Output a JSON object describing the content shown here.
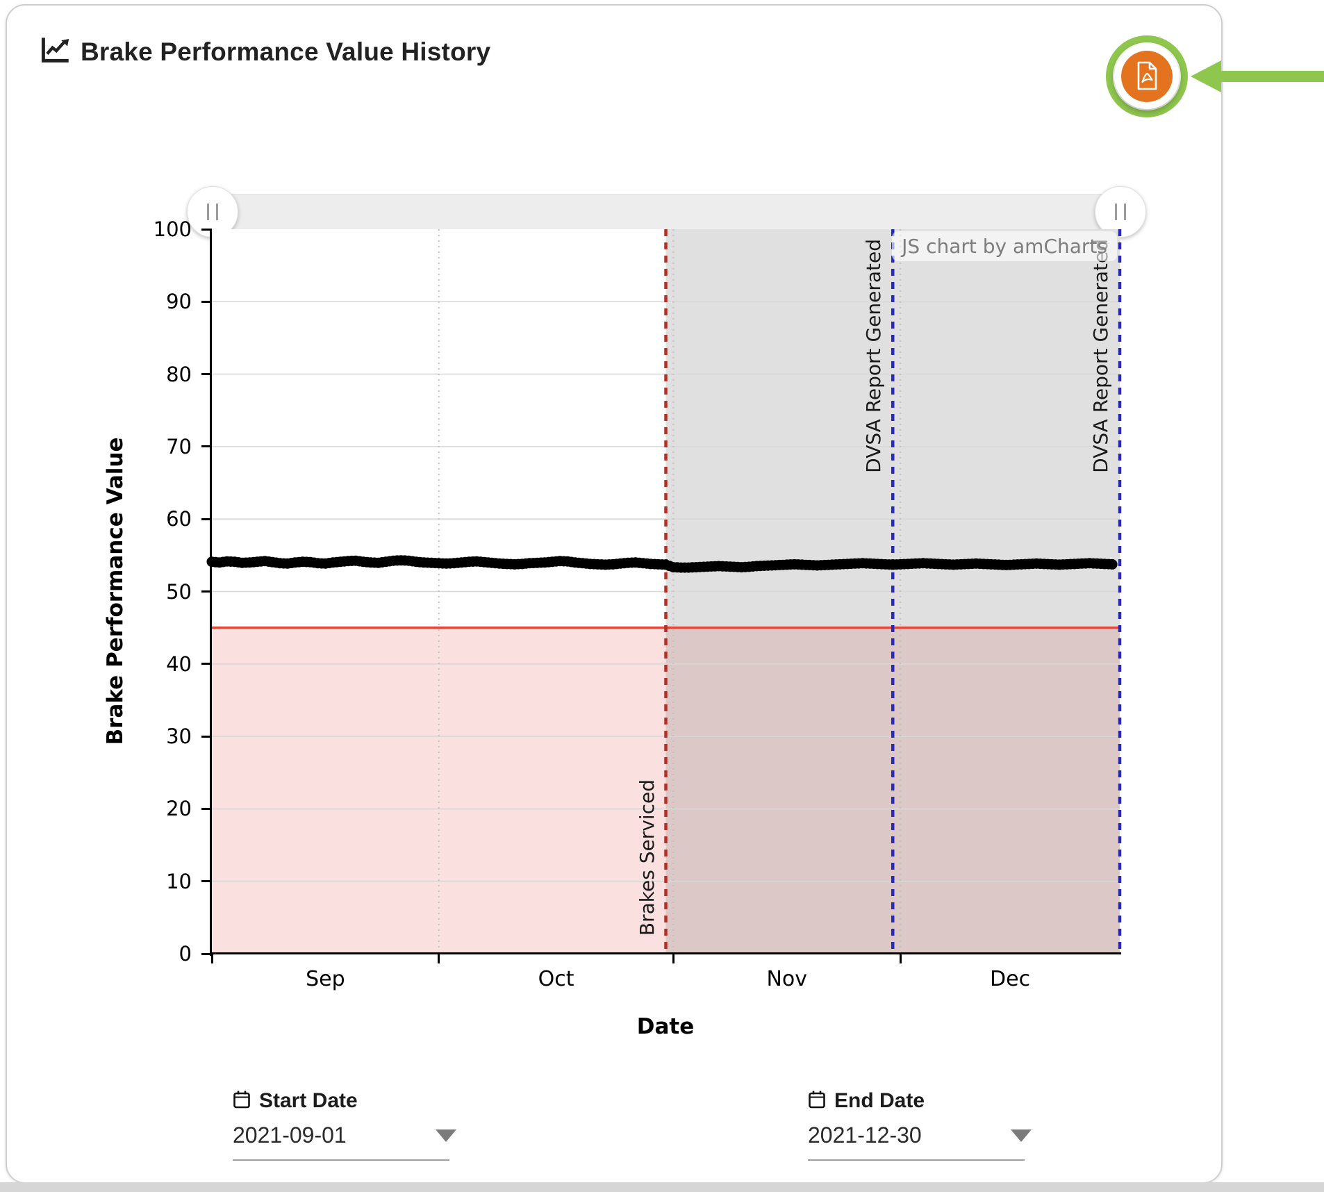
{
  "card": {
    "title": "Brake Performance Value History"
  },
  "chart_data": {
    "type": "scatter",
    "title": "Brake Performance Value History",
    "xlabel": "Date",
    "ylabel": "Brake Performance Value",
    "x_start": "2021-09-01",
    "x_end": "2021-12-30",
    "ylim": [
      0,
      100
    ],
    "y_tick_step": 10,
    "x_tick_labels": [
      "Sep",
      "Oct",
      "Nov",
      "Dec"
    ],
    "grid": true,
    "legend": false,
    "watermark": "JS chart by amCharts",
    "series": [
      {
        "name": "Brake Performance Value",
        "interval": "day",
        "color": "#000000",
        "values": [
          54.1,
          54.0,
          54.15,
          54.1,
          53.95,
          54.0,
          54.1,
          54.2,
          54.05,
          53.9,
          53.85,
          54.0,
          54.1,
          54.05,
          53.9,
          53.85,
          54.0,
          54.1,
          54.2,
          54.25,
          54.1,
          54.0,
          53.95,
          54.1,
          54.25,
          54.3,
          54.25,
          54.1,
          54.0,
          53.95,
          53.9,
          53.85,
          53.9,
          54.0,
          54.1,
          54.15,
          54.05,
          53.95,
          53.85,
          53.8,
          53.75,
          53.8,
          53.9,
          53.95,
          54.0,
          54.1,
          54.2,
          54.15,
          54.0,
          53.9,
          53.8,
          53.75,
          53.7,
          53.75,
          53.85,
          53.95,
          54.0,
          53.9,
          53.8,
          53.75,
          53.7,
          53.35,
          53.3,
          53.3,
          53.35,
          53.4,
          53.45,
          53.5,
          53.45,
          53.4,
          53.35,
          53.4,
          53.5,
          53.55,
          53.6,
          53.65,
          53.7,
          53.75,
          53.7,
          53.65,
          53.6,
          53.65,
          53.7,
          53.75,
          53.8,
          53.85,
          53.9,
          53.85,
          53.8,
          53.75,
          53.7,
          53.75,
          53.8,
          53.85,
          53.9,
          53.85,
          53.8,
          53.75,
          53.7,
          53.75,
          53.8,
          53.85,
          53.8,
          53.75,
          53.7,
          53.65,
          53.7,
          53.75,
          53.8,
          53.85,
          53.8,
          53.75,
          53.7,
          53.75,
          53.8,
          53.85,
          53.9,
          53.85,
          53.8,
          53.75
        ]
      }
    ],
    "threshold_line": {
      "value": 45,
      "color": "#e2473a"
    },
    "shaded_ranges": [
      {
        "axis": "y",
        "from": 0,
        "to": 45,
        "color": "rgba(226,88,76,0.18)"
      },
      {
        "axis": "x",
        "from": "2021-10-31",
        "to": "2021-12-30",
        "color": "rgba(102,102,102,0.20)"
      }
    ],
    "event_lines": [
      {
        "date": "2021-10-31",
        "label": "Brakes Serviced",
        "color": "#ae322a",
        "label_anchor": "bottom"
      },
      {
        "date": "2021-11-30",
        "label": "DVSA Report Generated",
        "color": "#2929b8",
        "label_anchor": "top"
      },
      {
        "date": "2021-12-30",
        "label": "DVSA Report Generated",
        "color": "#2929b8",
        "label_anchor": "top"
      }
    ]
  },
  "controls": {
    "start_date": {
      "label": "Start Date",
      "value": "2021-09-01"
    },
    "end_date": {
      "label": "End Date",
      "value": "2021-12-30"
    }
  }
}
